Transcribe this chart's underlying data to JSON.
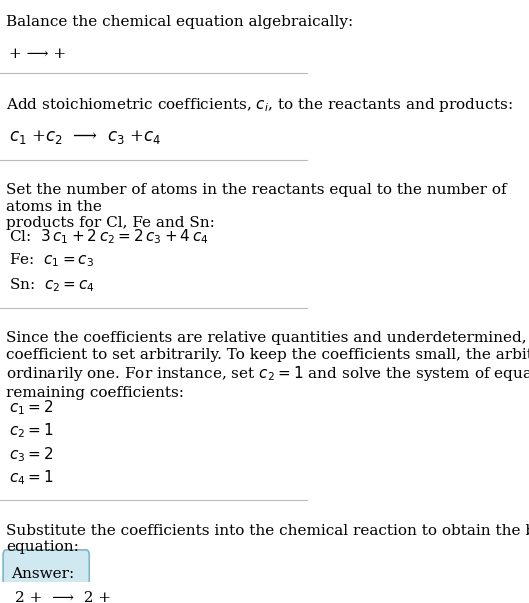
{
  "title": "Balance the chemical equation algebraically:",
  "line1": "+ ⟶ +",
  "section1_title": "Add stoichiometric coefficients, $c_i$, to the reactants and products:",
  "section1_eq": "$c_1$ +$c_2$  ⟶  $c_3$ +$c_4$",
  "section2_title": "Set the number of atoms in the reactants equal to the number of atoms in the\nproducts for Cl, Fe and Sn:",
  "section2_cl": "Cl:  $3\\,c_1 + 2\\,c_2 = 2\\,c_3 + 4\\,c_4$",
  "section2_fe": "Fe:  $c_1 = c_3$",
  "section2_sn": "Sn:  $c_2 = c_4$",
  "section3_text": "Since the coefficients are relative quantities and underdetermined, choose a\ncoefficient to set arbitrarily. To keep the coefficients small, the arbitrary value is\nordinarily one. For instance, set $c_2 = 1$ and solve the system of equations for the\nremaining coefficients:",
  "section3_c1": "$c_1 = 2$",
  "section3_c2": "$c_2 = 1$",
  "section3_c3": "$c_3 = 2$",
  "section3_c4": "$c_4 = 1$",
  "section4_title": "Substitute the coefficients into the chemical reaction to obtain the balanced\nequation:",
  "section4_answer_label": "Answer:",
  "section4_eq": "2 +  ⟶  2 +",
  "bg_color": "#ffffff",
  "text_color": "#000000",
  "box_color": "#d0e8f0",
  "line_color": "#aaaaaa",
  "font_size": 11,
  "small_font": 10
}
